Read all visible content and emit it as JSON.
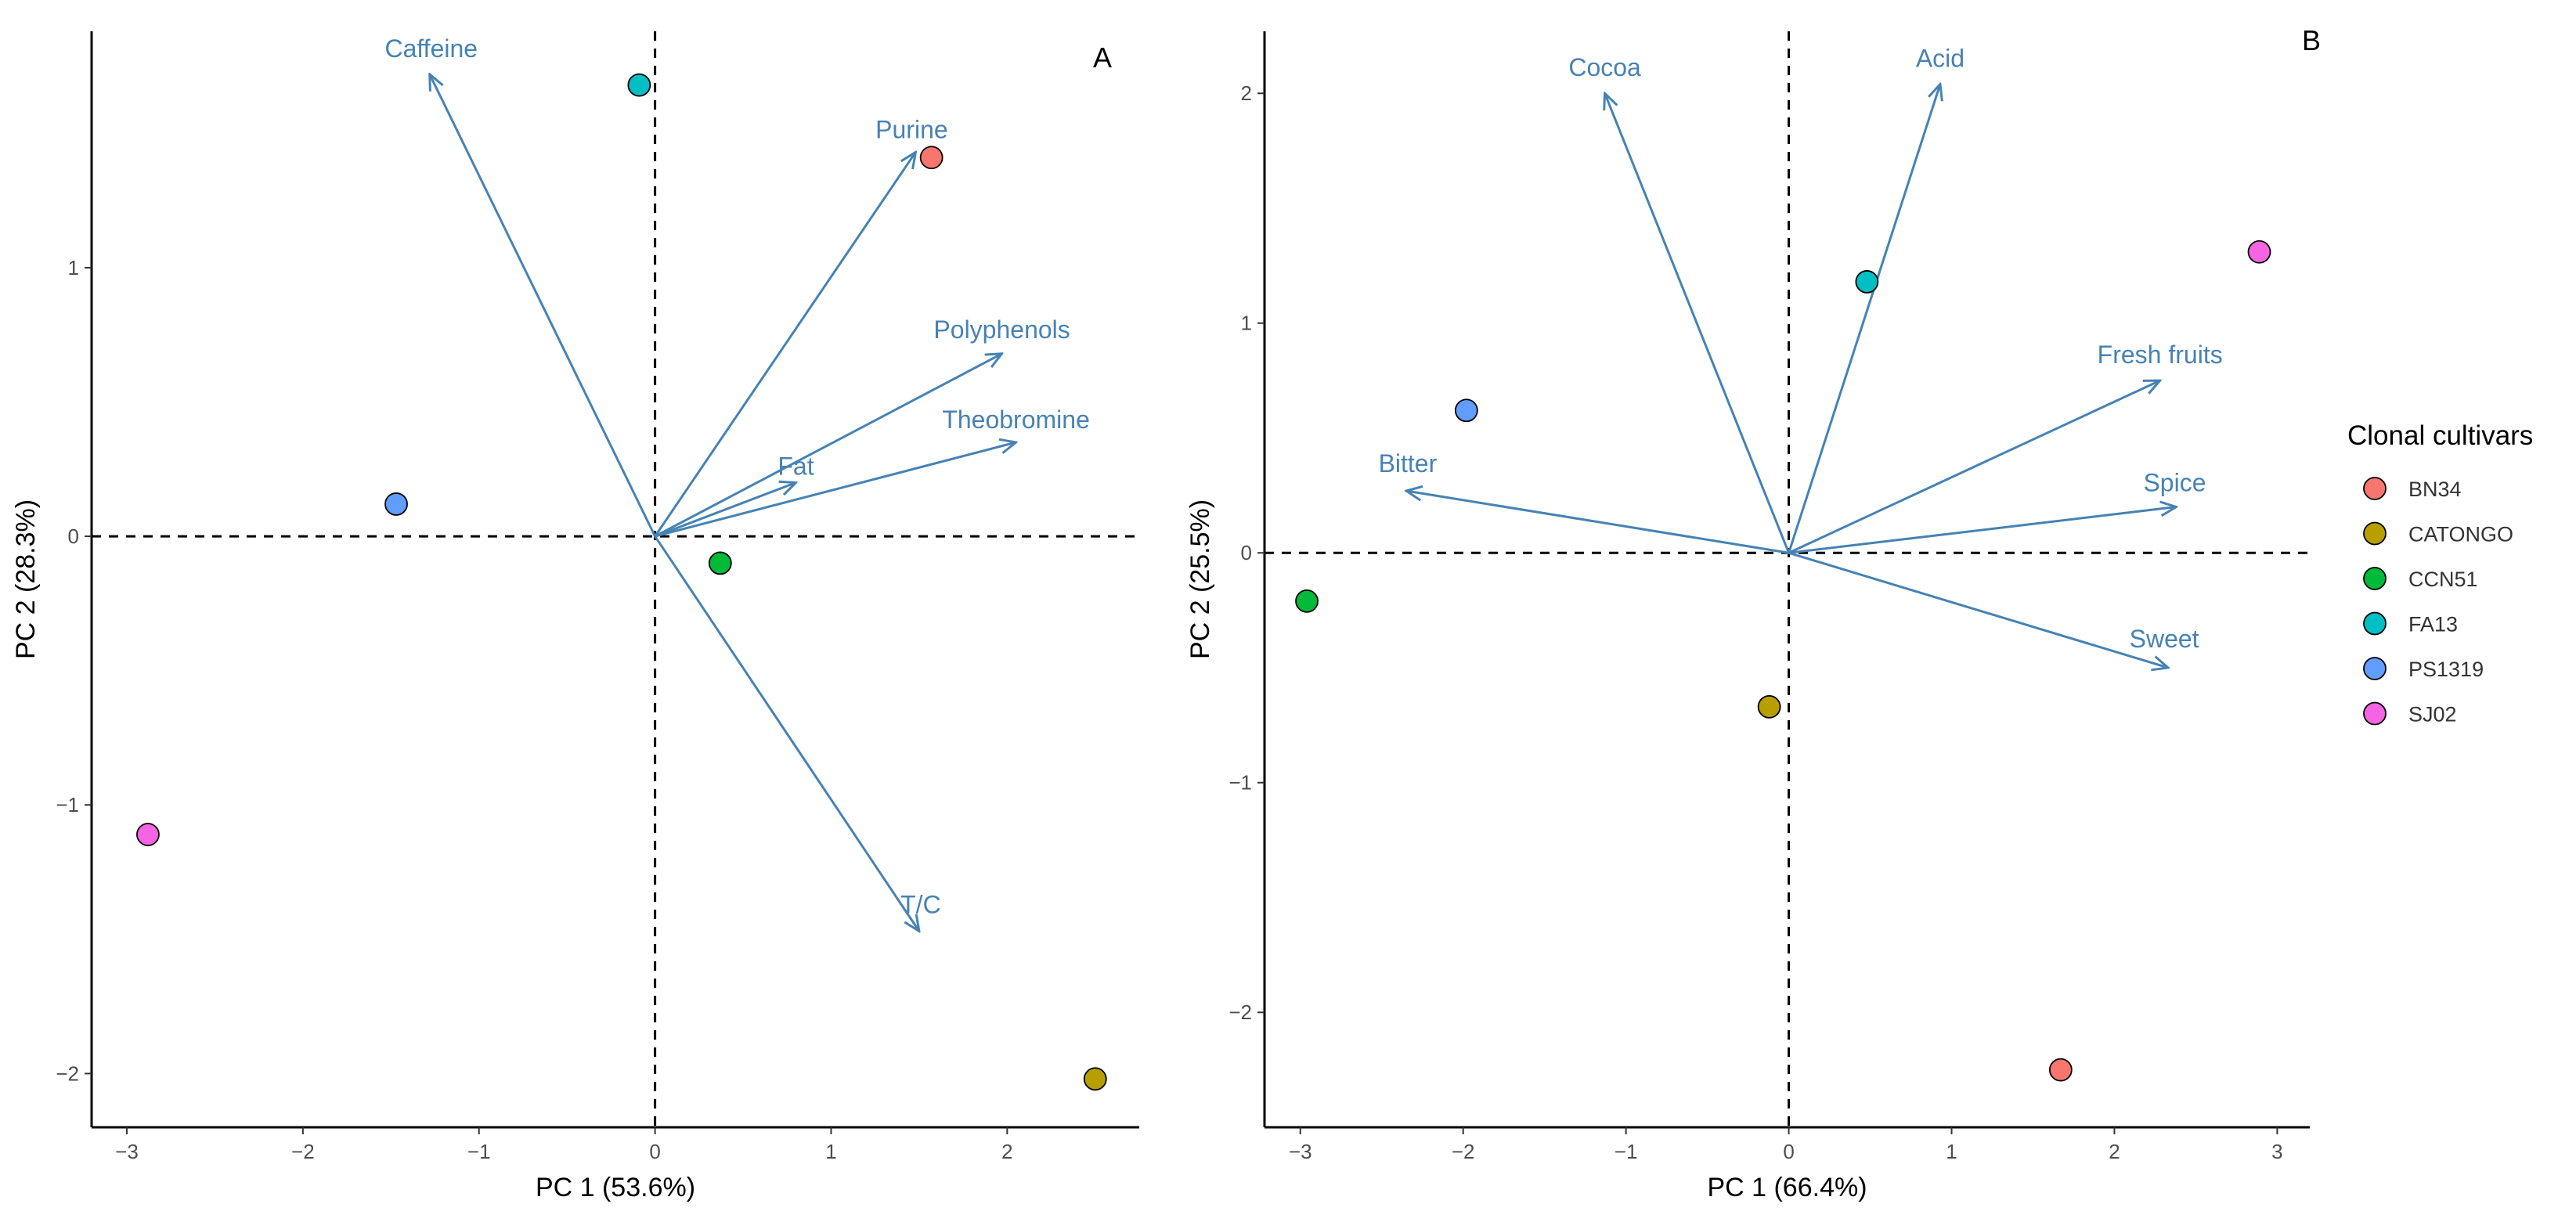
{
  "colors": {
    "arrow": "#4682b4",
    "axis": "#000000",
    "refline": "#000000",
    "BN34": "#f8766d",
    "CATONGO": "#b79f00",
    "CCN51": "#00ba38",
    "FA13": "#00bfc4",
    "PS1319": "#619cff",
    "SJ02": "#f564e3"
  },
  "legend": {
    "title": "Clonal cultivars",
    "items": [
      "BN34",
      "CATONGO",
      "CCN51",
      "FA13",
      "PS1319",
      "SJ02"
    ]
  },
  "chart_data": [
    {
      "type": "scatter",
      "subtype": "pca-biplot",
      "panel": "A",
      "xlabel": "PC 1 (53.6%)",
      "ylabel": "PC 2 (28.3%)",
      "xlim": [
        -3.2,
        2.75
      ],
      "ylim": [
        -2.2,
        1.88
      ],
      "xticks": [
        -3,
        -2,
        -1,
        0,
        1,
        2
      ],
      "yticks": [
        -2,
        -1,
        0,
        1
      ],
      "points": [
        {
          "name": "BN34",
          "x": 1.57,
          "y": 1.41
        },
        {
          "name": "CATONGO",
          "x": 2.5,
          "y": -2.02
        },
        {
          "name": "CCN51",
          "x": 0.37,
          "y": -0.1
        },
        {
          "name": "FA13",
          "x": -0.09,
          "y": 1.68
        },
        {
          "name": "PS1319",
          "x": -1.47,
          "y": 0.12
        },
        {
          "name": "SJ02",
          "x": -2.88,
          "y": -1.11
        }
      ],
      "loadings": [
        {
          "name": "Caffeine",
          "x": -1.28,
          "y": 1.72
        },
        {
          "name": "Purine",
          "x": 1.48,
          "y": 1.43
        },
        {
          "name": "Polyphenols",
          "x": 1.97,
          "y": 0.68
        },
        {
          "name": "Theobromine",
          "x": 2.05,
          "y": 0.35
        },
        {
          "name": "Fat",
          "x": 0.8,
          "y": 0.2
        },
        {
          "name": "T/C",
          "x": 1.5,
          "y": -1.47
        }
      ]
    },
    {
      "type": "scatter",
      "subtype": "pca-biplot",
      "panel": "B",
      "xlabel": "PC 1 (66.4%)",
      "ylabel": "PC 2 (25.5%)",
      "xlim": [
        -3.22,
        3.2
      ],
      "ylim": [
        -2.5,
        2.27
      ],
      "xticks": [
        -3,
        -2,
        -1,
        0,
        1,
        2,
        3
      ],
      "yticks": [
        -2,
        -1,
        0,
        1,
        2
      ],
      "points": [
        {
          "name": "BN34",
          "x": 1.67,
          "y": -2.25
        },
        {
          "name": "CATONGO",
          "x": -0.12,
          "y": -0.67
        },
        {
          "name": "CCN51",
          "x": -2.96,
          "y": -0.21
        },
        {
          "name": "FA13",
          "x": 0.48,
          "y": 1.18
        },
        {
          "name": "PS1319",
          "x": -1.98,
          "y": 0.62
        },
        {
          "name": "SJ02",
          "x": 2.89,
          "y": 1.31
        }
      ],
      "loadings": [
        {
          "name": "Cocoa",
          "x": -1.13,
          "y": 2.0
        },
        {
          "name": "Acid",
          "x": 0.93,
          "y": 2.04
        },
        {
          "name": "Fresh fruits",
          "x": 2.28,
          "y": 0.75
        },
        {
          "name": "Spice",
          "x": 2.38,
          "y": 0.2
        },
        {
          "name": "Sweet",
          "x": 2.33,
          "y": -0.5
        },
        {
          "name": "Bitter",
          "x": -2.35,
          "y": 0.27
        }
      ]
    }
  ]
}
